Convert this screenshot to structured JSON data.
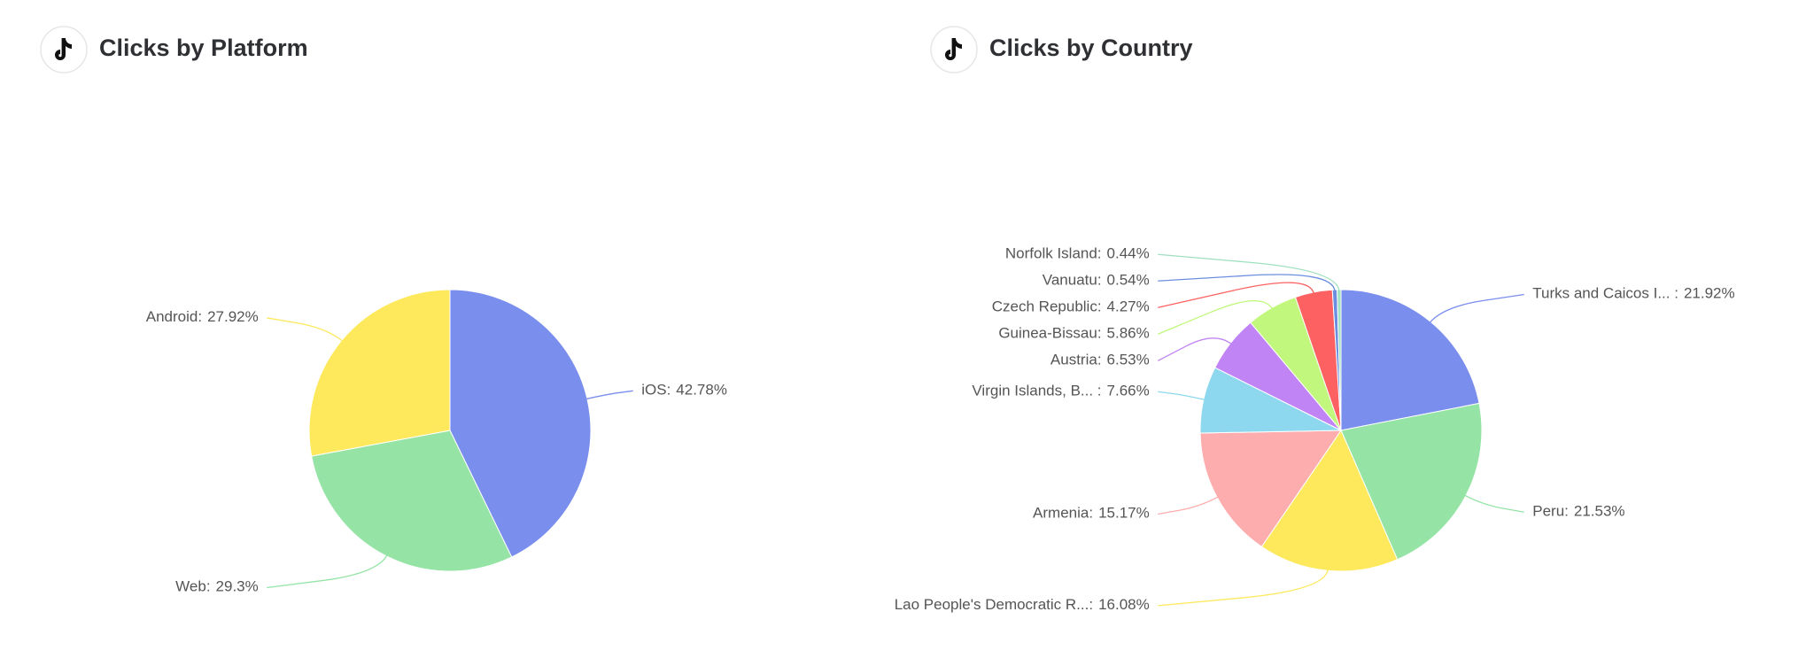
{
  "chart_data": [
    {
      "type": "pie",
      "title": "Clicks by Platform",
      "categories": [
        "iOS:",
        "Web:",
        "Android:"
      ],
      "values": [
        42.78,
        29.3,
        27.92
      ],
      "value_labels": [
        "42.78%",
        "29.3%",
        "27.92%"
      ],
      "colors": [
        "#7a8eee",
        "#95e4a6",
        "#fde95b"
      ]
    },
    {
      "type": "pie",
      "title": "Clicks by Country",
      "categories": [
        "Turks and Caicos I... :",
        "Peru:",
        "Lao People's Democratic R...:",
        "Armenia:",
        "Virgin Islands, B... :",
        "Austria:",
        "Guinea-Bissau:",
        "Czech Republic:",
        "Vanuatu:",
        "Norfolk Island:"
      ],
      "values": [
        21.92,
        21.53,
        16.08,
        15.17,
        7.66,
        6.53,
        5.86,
        4.27,
        0.54,
        0.44
      ],
      "value_labels": [
        "21.92%",
        "21.53%",
        "16.08%",
        "15.17%",
        "7.66%",
        "6.53%",
        "5.86%",
        "4.27%",
        "0.54%",
        "0.44%"
      ],
      "colors": [
        "#7a8eee",
        "#95e4a6",
        "#fde95b",
        "#fdadad",
        "#8dd8ef",
        "#c084f4",
        "#c0f77c",
        "#fd6161",
        "#6b8ee0",
        "#9ee0c0"
      ]
    }
  ]
}
